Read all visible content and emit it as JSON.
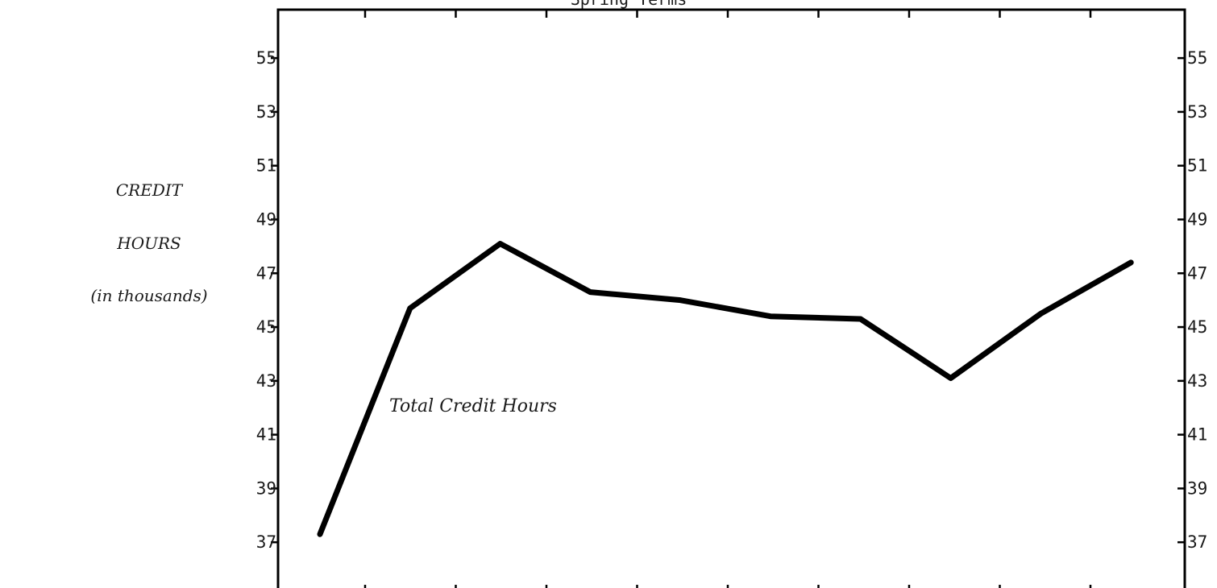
{
  "chart_data": {
    "type": "line",
    "title": "Spring Terms",
    "ylabel_lines": [
      "CREDIT",
      "HOURS",
      "(in thousands)"
    ],
    "annotation": "Total Credit Hours",
    "yticks": [
      37,
      39,
      41,
      43,
      45,
      47,
      49,
      51,
      53,
      55
    ],
    "ylim": [
      35.0,
      56.8
    ],
    "x_ticks_count": 9,
    "grid": false,
    "series": [
      {
        "values": [
          37.3,
          45.7,
          48.1,
          46.3,
          46.0,
          45.4,
          45.3,
          43.1,
          45.5,
          47.4
        ]
      }
    ],
    "line_color": "#000000"
  }
}
